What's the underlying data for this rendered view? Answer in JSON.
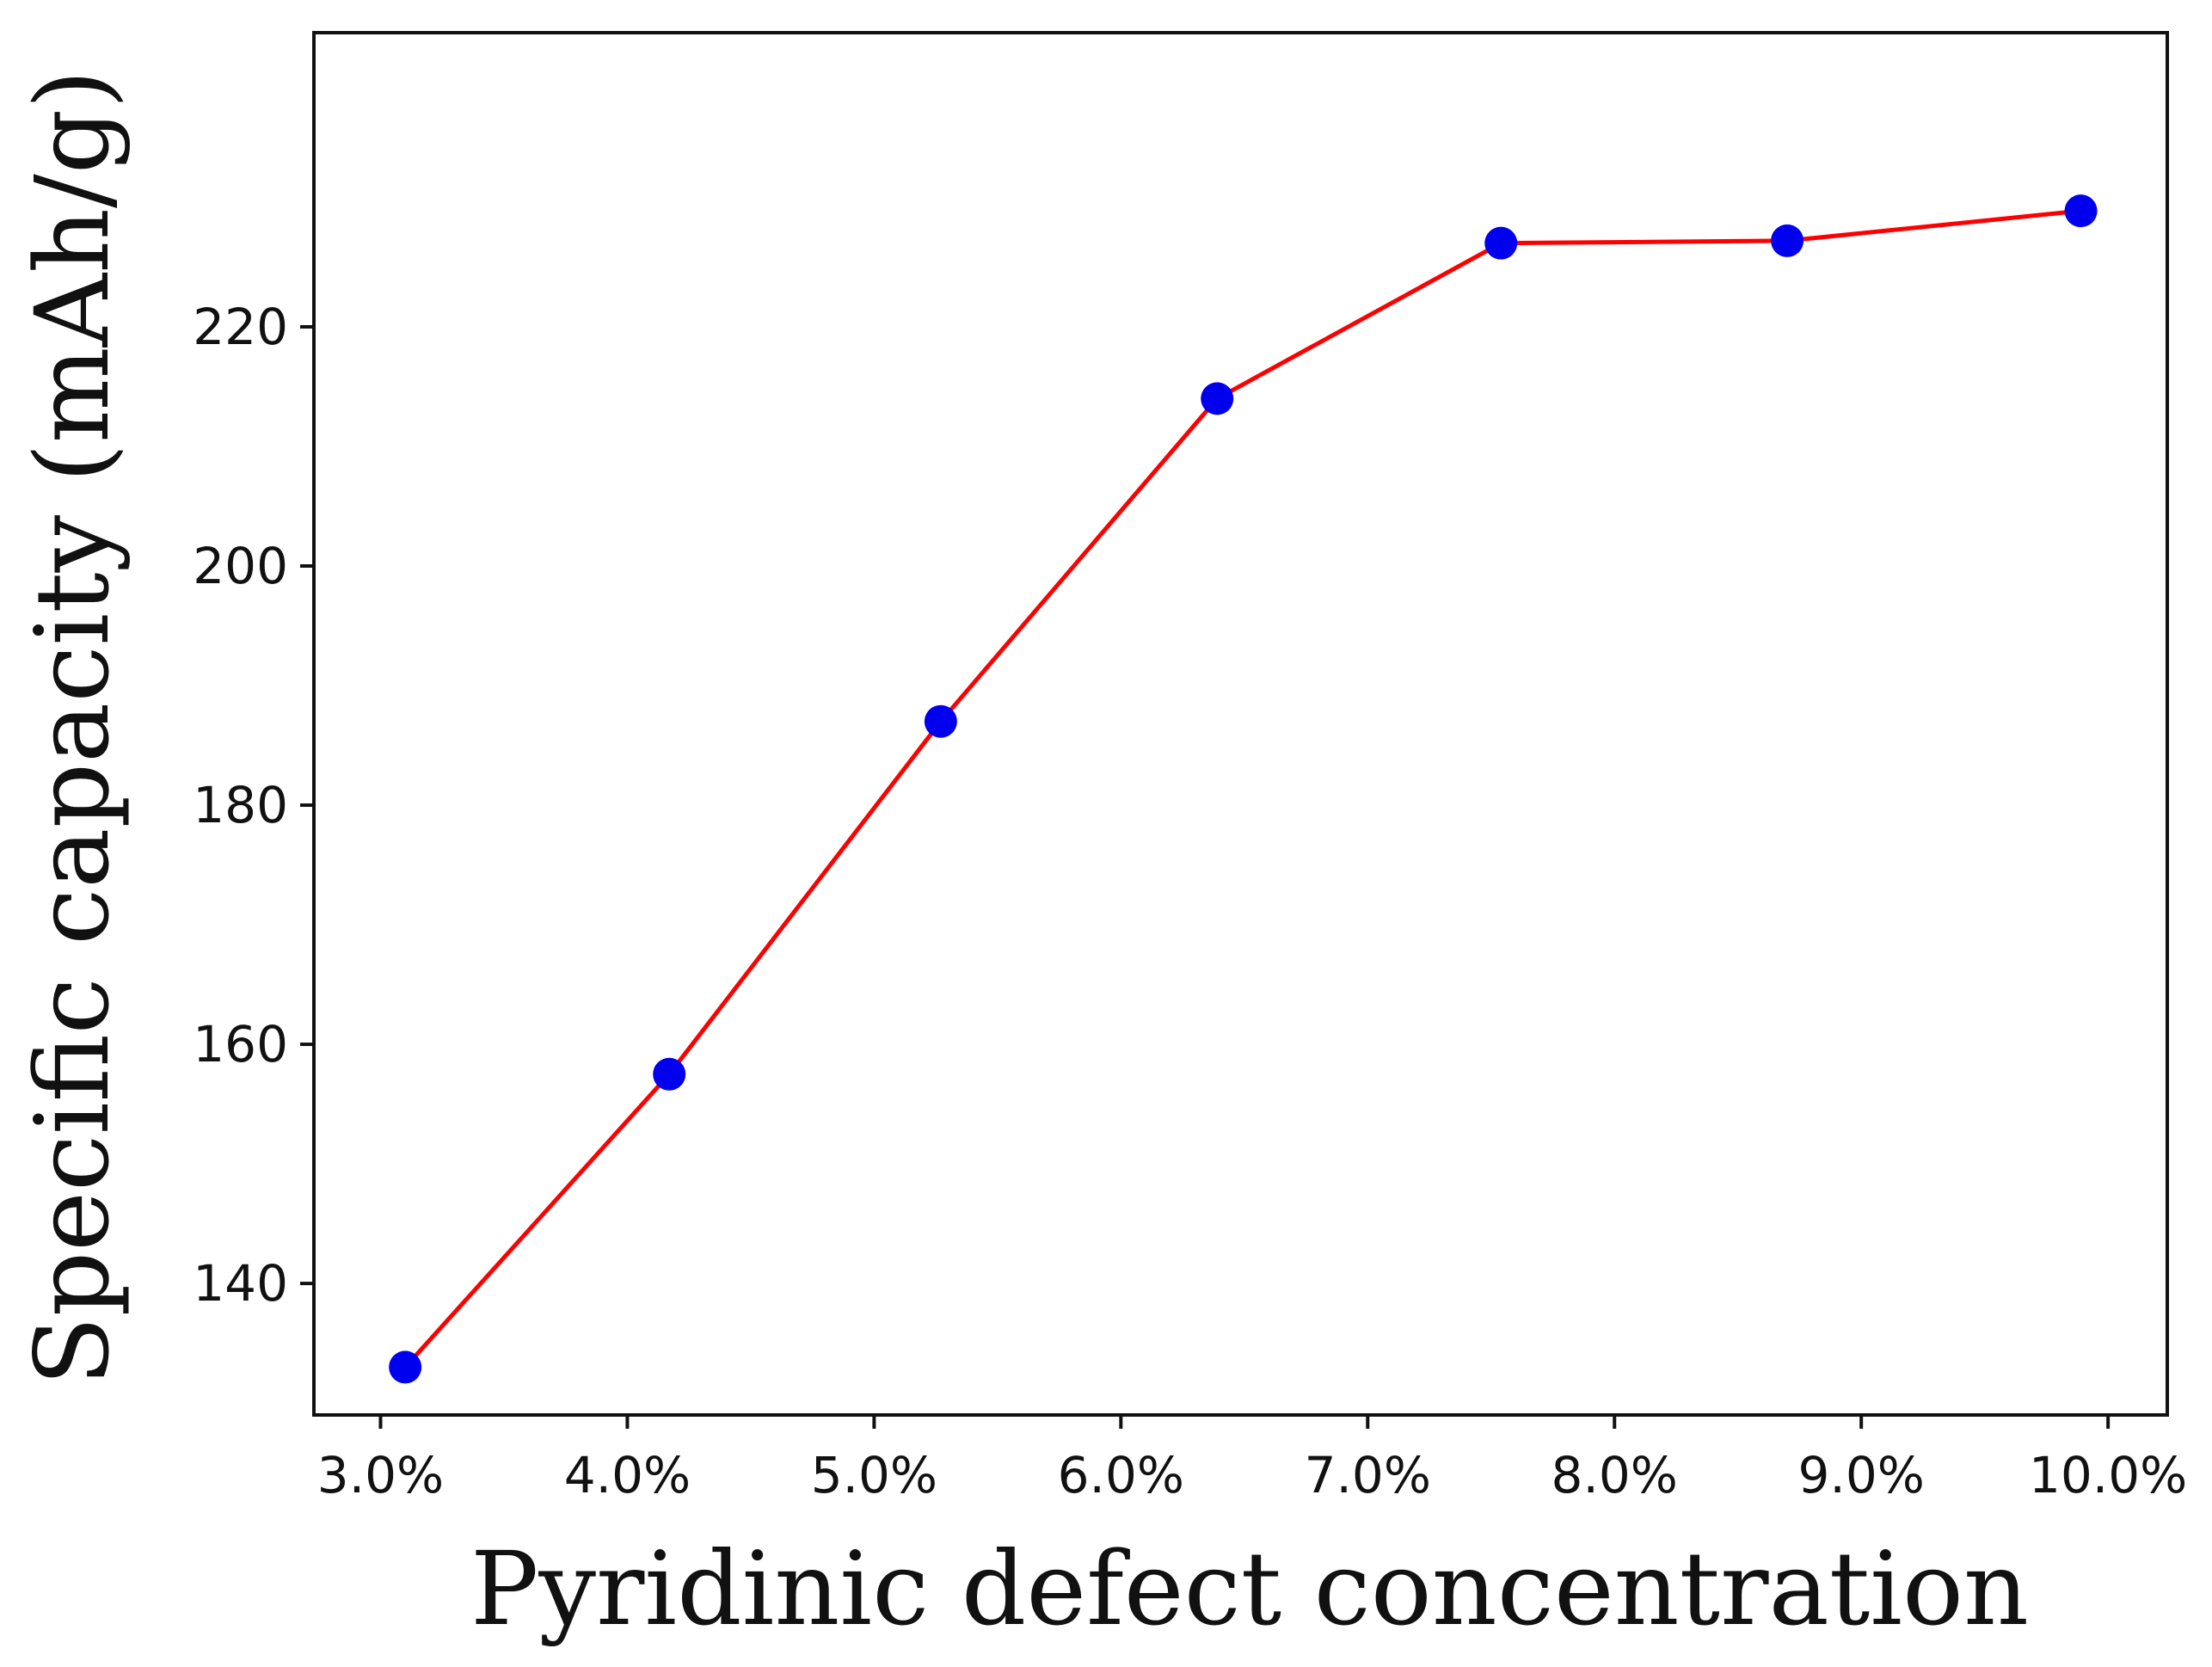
{
  "chart_data": {
    "type": "line",
    "title": "",
    "xlabel": "Pyridinic defect concentration",
    "ylabel": "Specific capacity (mAh/g)",
    "x": [
      3.1,
      4.17,
      5.27,
      6.39,
      7.54,
      8.7,
      9.89
    ],
    "series": [
      {
        "values": [
          133.0,
          157.5,
          187.0,
          214.0,
          227.0,
          227.2,
          229.7
        ],
        "line_color": "#ff0000",
        "marker_color": "#0000ee"
      }
    ],
    "xticks": [
      3.0,
      4.0,
      5.0,
      6.0,
      7.0,
      8.0,
      9.0,
      10.0
    ],
    "xtick_labels": [
      "3.0%",
      "4.0%",
      "5.0%",
      "6.0%",
      "7.0%",
      "8.0%",
      "9.0%",
      "10.0%"
    ],
    "yticks": [
      140,
      160,
      180,
      200,
      220
    ],
    "ytick_labels": [
      "140",
      "160",
      "180",
      "200",
      "220"
    ],
    "xlim": [
      2.73,
      10.24
    ],
    "ylim": [
      129.0,
      244.6
    ],
    "grid": false,
    "legend": "none"
  }
}
